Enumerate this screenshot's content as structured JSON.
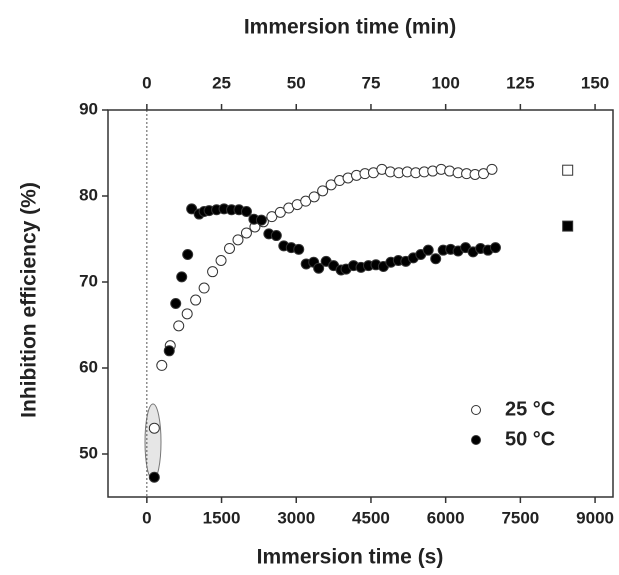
{
  "chart_data": {
    "type": "scatter",
    "xlabel": "Immersion time (s)",
    "x2label": "Immersion time (min)",
    "ylabel": "Inhibition efficiency (%)",
    "xlim": [
      -780,
      9360
    ],
    "xticks": [
      0,
      1500,
      3000,
      4500,
      6000,
      7500,
      9000
    ],
    "x2lim": [
      -13,
      156
    ],
    "x2ticks": [
      0,
      25,
      50,
      75,
      100,
      125,
      150
    ],
    "ylim": [
      45,
      90
    ],
    "yticks": [
      50,
      60,
      70,
      80,
      90
    ],
    "legend": "lower right",
    "series": [
      {
        "name": "25 °C",
        "color": "#ffffff",
        "x": [
          150,
          300,
          470,
          640,
          810,
          980,
          1150,
          1320,
          1490,
          1660,
          1830,
          2000,
          2170,
          2340,
          2510,
          2680,
          2850,
          3020,
          3190,
          3360,
          3530,
          3700,
          3870,
          4040,
          4210,
          4380,
          4550,
          4720,
          4890,
          5060,
          5230,
          5400,
          5570,
          5740,
          5910,
          6080,
          6250,
          6420,
          6590,
          6760,
          6930
        ],
        "values": [
          53,
          60.3,
          62.6,
          64.9,
          66.3,
          67.9,
          69.3,
          71.2,
          72.5,
          73.9,
          74.9,
          75.7,
          76.4,
          77.0,
          77.6,
          78.1,
          78.6,
          79.0,
          79.4,
          79.9,
          80.6,
          81.3,
          81.8,
          82.1,
          82.4,
          82.6,
          82.7,
          83.1,
          82.8,
          82.7,
          82.8,
          82.7,
          82.8,
          82.9,
          83.1,
          82.9,
          82.7,
          82.6,
          82.5,
          82.6,
          83.1
        ]
      },
      {
        "name": "50 °C",
        "color": "#000000",
        "x": [
          150,
          450,
          580,
          700,
          820,
          900,
          1050,
          1150,
          1250,
          1400,
          1550,
          1700,
          1850,
          2000,
          2150,
          2300,
          2450,
          2600,
          2750,
          2900,
          3050,
          3200,
          3350,
          3450,
          3600,
          3750,
          3900,
          4000,
          4150,
          4300,
          4450,
          4600,
          4750,
          4900,
          5050,
          5200,
          5350,
          5500,
          5650,
          5800,
          5950,
          6100,
          6250,
          6400,
          6550,
          6700,
          6850,
          7000
        ],
        "values": [
          47.3,
          62,
          67.5,
          70.6,
          73.2,
          78.5,
          77.9,
          78.2,
          78.3,
          78.4,
          78.5,
          78.4,
          78.4,
          78.2,
          77.3,
          77.2,
          75.6,
          75.4,
          74.2,
          74,
          73.8,
          72.1,
          72.3,
          71.6,
          72.4,
          71.9,
          71.4,
          71.5,
          71.9,
          71.7,
          71.9,
          72,
          71.8,
          72.3,
          72.5,
          72.4,
          72.8,
          73.2,
          73.7,
          72.7,
          73.7,
          73.8,
          73.6,
          74,
          73.5,
          73.9,
          73.7,
          74
        ]
      }
    ],
    "square_markers": {
      "x": [
        8450,
        8450
      ],
      "values": [
        83,
        76.5
      ],
      "colors": [
        "#ffffff",
        "#000000"
      ]
    }
  }
}
